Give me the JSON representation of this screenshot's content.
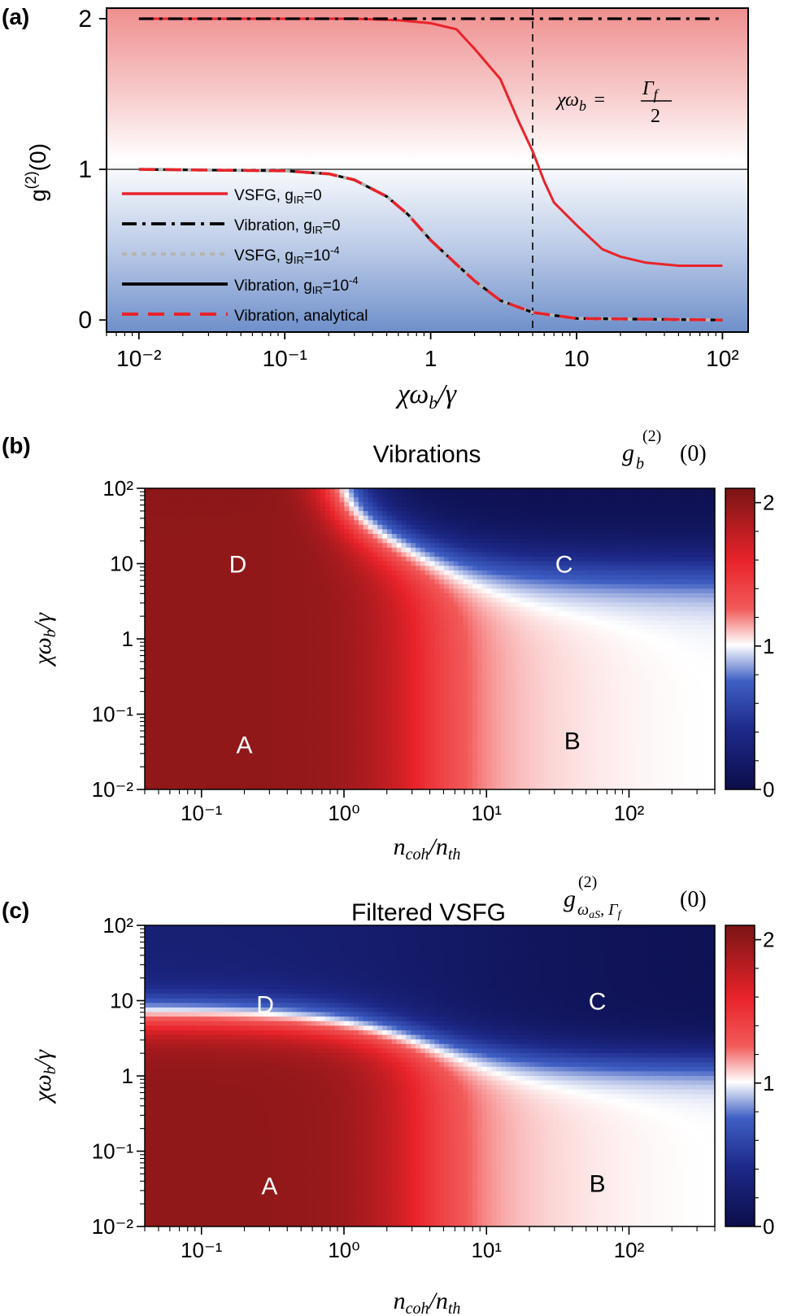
{
  "chart_data": [
    {
      "panel": "(a)",
      "type": "line",
      "xscale": "log",
      "xlim": [
        0.006,
        150
      ],
      "ylim": [
        -0.08,
        2.07
      ],
      "xlabel": "χω_b/γ",
      "ylabel": "g^(2)(0)",
      "xticks": [
        0.01,
        0.1,
        1,
        10,
        100
      ],
      "xtick_labels": [
        "10⁻²",
        "10⁻¹",
        "1",
        "10",
        "10²"
      ],
      "yticks": [
        0,
        1,
        2
      ],
      "ytick_labels": [
        "0",
        "1",
        "2"
      ],
      "background": "red-to-blue gradient (g>1 red, g<1 blue)",
      "reference_line_y": 1,
      "vline_x": 5,
      "vline_label": "χω_b = Γ_f / 2",
      "legend_location": "left",
      "series": [
        {
          "name": "VSFG, g_IR=0",
          "label_main": "VSFG, g",
          "label_sub": "IR",
          "label_tail": "=0",
          "color": "#e8232a",
          "style": "solid",
          "x": [
            0.01,
            0.3,
            0.6,
            1,
            1.5,
            2,
            3,
            4,
            5,
            6,
            7,
            10,
            15,
            20,
            30,
            50,
            100
          ],
          "y": [
            2.0,
            2.0,
            1.99,
            1.97,
            1.93,
            1.8,
            1.6,
            1.32,
            1.12,
            0.92,
            0.78,
            0.63,
            0.47,
            0.42,
            0.38,
            0.36,
            0.36
          ]
        },
        {
          "name": "Vibration, g_IR=0",
          "label_main": "Vibration, g",
          "label_sub": "IR",
          "label_tail": "=0",
          "color": "#000000",
          "style": "dashdot",
          "x": [
            0.01,
            100
          ],
          "y": [
            2.0,
            2.0
          ]
        },
        {
          "name": "VSFG, g_IR=10^-4",
          "label_main": "VSFG, g",
          "label_sub": "IR",
          "label_tail": "=10",
          "label_sup": "-4",
          "color": "#b5b5b5",
          "style": "dotted",
          "x": [
            0.01,
            0.1,
            0.2,
            0.3,
            0.5,
            0.7,
            1,
            1.5,
            2,
            3,
            5,
            10,
            100
          ],
          "y": [
            1.0,
            0.99,
            0.97,
            0.93,
            0.82,
            0.7,
            0.53,
            0.37,
            0.26,
            0.13,
            0.05,
            0.01,
            0.0
          ]
        },
        {
          "name": "Vibration, g_IR=10^-4",
          "label_main": "Vibration, g",
          "label_sub": "IR",
          "label_tail": "=10",
          "label_sup": "-4",
          "color": "#000000",
          "style": "solid",
          "x": [
            0.01,
            0.1,
            0.2,
            0.3,
            0.5,
            0.7,
            1,
            1.5,
            2,
            3,
            5,
            10,
            100
          ],
          "y": [
            1.0,
            0.99,
            0.97,
            0.93,
            0.82,
            0.7,
            0.53,
            0.37,
            0.26,
            0.13,
            0.05,
            0.01,
            0.0
          ]
        },
        {
          "name": "Vibration, analytical",
          "label_main": "Vibration, analytical",
          "label_sub": "",
          "label_tail": "",
          "color": "#e8232a",
          "style": "longdash",
          "x": [
            0.01,
            0.1,
            0.2,
            0.3,
            0.5,
            0.7,
            1,
            1.5,
            2,
            3,
            5,
            10,
            100
          ],
          "y": [
            1.0,
            0.99,
            0.97,
            0.93,
            0.82,
            0.7,
            0.53,
            0.37,
            0.26,
            0.13,
            0.05,
            0.01,
            0.0
          ]
        }
      ]
    },
    {
      "panel": "(b)",
      "type": "heatmap",
      "title": "Vibrations",
      "colorbar_label": "g_b^(2) (0)",
      "xscale": "log",
      "yscale": "log",
      "xlim": [
        0.04,
        400
      ],
      "ylim": [
        0.01,
        100
      ],
      "xlabel": "n_coh/n_th",
      "ylabel": "χω_b/γ",
      "xticks": [
        0.1,
        1,
        10,
        100
      ],
      "xtick_labels": [
        "10⁻¹",
        "10⁰",
        "10¹",
        "10²"
      ],
      "yticks": [
        0.01,
        0.1,
        1,
        10,
        100
      ],
      "ytick_labels": [
        "10⁻²",
        "10⁻¹",
        "1",
        "10",
        "10²"
      ],
      "clim": [
        0,
        2.1
      ],
      "colorbar_ticks": [
        0,
        1,
        2
      ],
      "colorbar_tick_labels": [
        "0",
        "1",
        "2"
      ],
      "colormap": "seismic (navy-blue-white-red-darkred)",
      "region_labels": [
        {
          "text": "A",
          "x": 0.2,
          "y": 0.04
        },
        {
          "text": "B",
          "x": 40,
          "y": 0.045
        },
        {
          "text": "C",
          "x": 35,
          "y": 10
        },
        {
          "text": "D",
          "x": 0.18,
          "y": 10
        }
      ]
    },
    {
      "panel": "(c)",
      "type": "heatmap",
      "title": "Filtered VSFG",
      "colorbar_label": "g_(ω_aS, Γ_f)^(2) (0)",
      "xscale": "log",
      "yscale": "log",
      "xlim": [
        0.04,
        400
      ],
      "ylim": [
        0.01,
        100
      ],
      "xlabel": "n_coh/n_th",
      "ylabel": "χω_b/γ",
      "xticks": [
        0.1,
        1,
        10,
        100
      ],
      "xtick_labels": [
        "10⁻¹",
        "10⁰",
        "10¹",
        "10²"
      ],
      "yticks": [
        0.01,
        0.1,
        1,
        10,
        100
      ],
      "ytick_labels": [
        "10⁻²",
        "10⁻¹",
        "1",
        "10",
        "10²"
      ],
      "clim": [
        0,
        2.1
      ],
      "colorbar_ticks": [
        0,
        1,
        2
      ],
      "colorbar_tick_labels": [
        "0",
        "1",
        "2"
      ],
      "colormap": "seismic (navy-blue-white-red-darkred)",
      "region_labels": [
        {
          "text": "A",
          "x": 0.3,
          "y": 0.035
        },
        {
          "text": "B",
          "x": 60,
          "y": 0.038
        },
        {
          "text": "C",
          "x": 60,
          "y": 10
        },
        {
          "text": "D",
          "x": 0.28,
          "y": 9
        }
      ]
    }
  ],
  "labels": {
    "panel_a": "(a)",
    "panel_b": "(b)",
    "panel_c": "(c)",
    "title_b": "Vibrations",
    "title_c": "Filtered VSFG",
    "xlabel_a_main": "χω",
    "xlabel_a_sub": "b",
    "xlabel_a_tail": "/γ",
    "ylabel_a_main": "g",
    "ylabel_a_sup": "(2)",
    "ylabel_a_tail": "(0)",
    "ylabel_bc_main": "χω",
    "ylabel_bc_sub": "b",
    "ylabel_bc_tail": "/γ",
    "xlabel_bc_n1": "n",
    "xlabel_bc_sub1": "coh",
    "xlabel_bc_mid": "/n",
    "xlabel_bc_sub2": "th",
    "vline_lhs": "χω",
    "vline_lhs_sub": "b",
    "vline_eq": "=",
    "vline_num": "Γ",
    "vline_num_sub": "f",
    "vline_den": "2",
    "cbar_b_g": "g",
    "cbar_b_sub": "b",
    "cbar_b_sup": "(2)",
    "cbar_b_tail": "(0)",
    "cbar_c_g": "g",
    "cbar_c_sub": "ω",
    "cbar_c_subsub": "aS",
    "cbar_c_sub2": ", Γ",
    "cbar_c_subsub2": "f",
    "cbar_c_sup": "(2)",
    "cbar_c_tail": "(0)"
  }
}
